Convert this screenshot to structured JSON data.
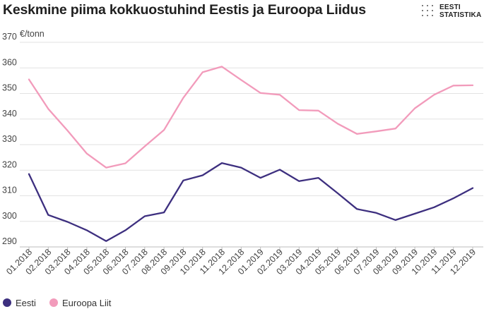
{
  "header": {
    "title": "Keskmine piima kokkuostuhind Eestis ja Euroopa Liidus",
    "logo_line1": "EESTI",
    "logo_line2": "STATISTIKA"
  },
  "colors": {
    "eesti": "#3d2f7f",
    "euroopa_liit": "#f29bbb",
    "grid": "#e2e2e2",
    "text": "#333333"
  },
  "chart_data": {
    "type": "line",
    "ylabel": "€/tonn",
    "ylim": [
      290,
      370
    ],
    "yticks": [
      290,
      300,
      310,
      320,
      330,
      340,
      350,
      360,
      370
    ],
    "grid": true,
    "legend_position": "bottom-left",
    "categories": [
      "01.2018",
      "02.2018",
      "03.2018",
      "04.2018",
      "05.2018",
      "06.2018",
      "07.2018",
      "08.2018",
      "09.2018",
      "10.2018",
      "11.2018",
      "12.2018",
      "01.2019",
      "02.2019",
      "03.2019",
      "04.2019",
      "05.2019",
      "06.2019",
      "07.2019",
      "08.2019",
      "09.2019",
      "10.2019",
      "11.2019",
      "12.2019"
    ],
    "series": [
      {
        "name": "Eesti",
        "color": "#3d2f7f",
        "values": [
          318.5,
          302.5,
          299.8,
          296.5,
          292.3,
          296.5,
          302.0,
          303.5,
          316.0,
          318.0,
          322.8,
          321.0,
          317.0,
          320.2,
          315.7,
          317.0,
          311.0,
          304.8,
          303.3,
          300.5,
          303.0,
          305.5,
          309.0,
          313.0
        ]
      },
      {
        "name": "Euroopa Liit",
        "color": "#f29bbb",
        "values": [
          355.5,
          344.0,
          335.5,
          326.5,
          321.0,
          322.7,
          329.3,
          335.7,
          348.3,
          358.3,
          360.5,
          355.3,
          350.2,
          349.5,
          343.5,
          343.3,
          338.2,
          334.2,
          335.2,
          336.3,
          344.2,
          349.5,
          353.1,
          353.2
        ]
      }
    ]
  }
}
